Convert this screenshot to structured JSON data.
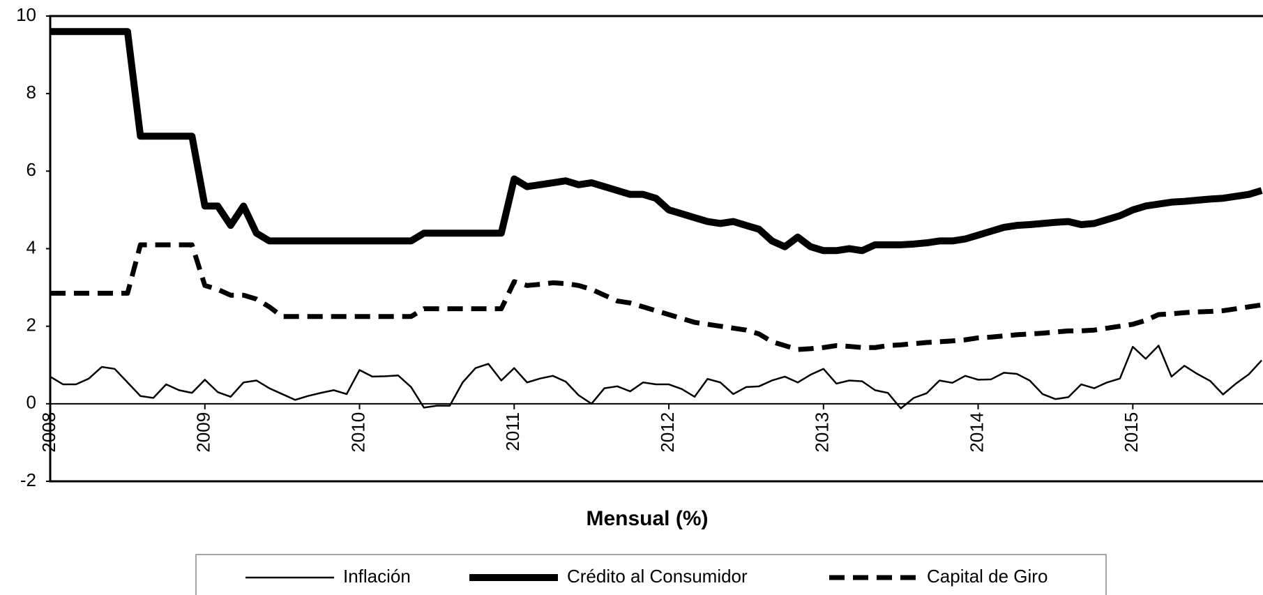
{
  "chart_data": {
    "type": "line",
    "x_label": "Mensual (%)",
    "categories": [
      "2008",
      null,
      null,
      null,
      null,
      null,
      null,
      null,
      null,
      null,
      null,
      null,
      "2009",
      null,
      null,
      null,
      null,
      null,
      null,
      null,
      null,
      null,
      null,
      null,
      "2010",
      null,
      null,
      null,
      null,
      null,
      null,
      null,
      null,
      null,
      null,
      null,
      "2011",
      null,
      null,
      null,
      null,
      null,
      null,
      null,
      null,
      null,
      null,
      null,
      "2012",
      null,
      null,
      null,
      null,
      null,
      null,
      null,
      null,
      null,
      null,
      null,
      "2013",
      null,
      null,
      null,
      null,
      null,
      null,
      null,
      null,
      null,
      null,
      null,
      "2014",
      null,
      null,
      null,
      null,
      null,
      null,
      null,
      null,
      null,
      null,
      null,
      "2015",
      null,
      null,
      null,
      null,
      null,
      null,
      null,
      null,
      null,
      null
    ],
    "ylim": [
      -2,
      10
    ],
    "yticks": [
      -2,
      0,
      2,
      4,
      6,
      8,
      10
    ],
    "grid": false,
    "legend": "bottom",
    "series": [
      {
        "name": "Inflación",
        "color": "#000000",
        "linestyle": "thin",
        "values": [
          0.7,
          0.5,
          0.5,
          0.65,
          0.95,
          0.9,
          0.55,
          0.2,
          0.15,
          0.5,
          0.35,
          0.28,
          0.62,
          0.3,
          0.18,
          0.55,
          0.6,
          0.4,
          0.25,
          0.1,
          0.2,
          0.28,
          0.35,
          0.25,
          0.87,
          0.7,
          0.71,
          0.73,
          0.43,
          -0.1,
          -0.05,
          -0.05,
          0.55,
          0.92,
          1.03,
          0.6,
          0.92,
          0.55,
          0.65,
          0.72,
          0.57,
          0.22,
          0.0,
          0.4,
          0.45,
          0.32,
          0.55,
          0.5,
          0.5,
          0.38,
          0.18,
          0.64,
          0.55,
          0.25,
          0.43,
          0.45,
          0.6,
          0.7,
          0.55,
          0.75,
          0.9,
          0.52,
          0.6,
          0.58,
          0.35,
          0.28,
          -0.12,
          0.15,
          0.27,
          0.6,
          0.54,
          0.72,
          0.62,
          0.63,
          0.8,
          0.77,
          0.6,
          0.25,
          0.12,
          0.17,
          0.5,
          0.4,
          0.55,
          0.65,
          1.47,
          1.16,
          1.5,
          0.7,
          0.98,
          0.77,
          0.59,
          0.24,
          0.52,
          0.76,
          1.12
        ]
      },
      {
        "name": "Crédito al Consumidor",
        "color": "#000000",
        "linestyle": "thick",
        "values": [
          9.6,
          9.6,
          9.6,
          9.6,
          9.6,
          9.6,
          9.6,
          6.9,
          6.9,
          6.9,
          6.9,
          6.9,
          5.1,
          5.1,
          4.6,
          5.1,
          4.4,
          4.2,
          4.2,
          4.2,
          4.2,
          4.2,
          4.2,
          4.2,
          4.2,
          4.2,
          4.2,
          4.2,
          4.2,
          4.4,
          4.4,
          4.4,
          4.4,
          4.4,
          4.4,
          4.4,
          5.8,
          5.6,
          5.65,
          5.7,
          5.75,
          5.65,
          5.7,
          5.6,
          5.5,
          5.4,
          5.4,
          5.3,
          5.0,
          4.9,
          4.8,
          4.7,
          4.65,
          4.7,
          4.6,
          4.5,
          4.2,
          4.05,
          4.3,
          4.05,
          3.95,
          3.95,
          4.0,
          3.95,
          4.1,
          4.1,
          4.1,
          4.12,
          4.15,
          4.2,
          4.2,
          4.25,
          4.35,
          4.45,
          4.55,
          4.6,
          4.62,
          4.65,
          4.68,
          4.7,
          4.62,
          4.65,
          4.75,
          4.85,
          5.0,
          5.1,
          5.15,
          5.2,
          5.22,
          5.25,
          5.28,
          5.3,
          5.35,
          5.4,
          5.5
        ]
      },
      {
        "name": "Capital de Giro",
        "color": "#000000",
        "linestyle": "dashed",
        "values": [
          2.85,
          2.85,
          2.85,
          2.85,
          2.85,
          2.85,
          2.85,
          4.1,
          4.1,
          4.1,
          4.1,
          4.1,
          3.05,
          2.95,
          2.8,
          2.8,
          2.7,
          2.5,
          2.25,
          2.25,
          2.25,
          2.25,
          2.25,
          2.25,
          2.25,
          2.25,
          2.25,
          2.25,
          2.25,
          2.45,
          2.45,
          2.45,
          2.45,
          2.45,
          2.45,
          2.45,
          3.15,
          3.05,
          3.08,
          3.12,
          3.1,
          3.05,
          2.95,
          2.8,
          2.65,
          2.6,
          2.5,
          2.4,
          2.3,
          2.2,
          2.1,
          2.05,
          2.0,
          1.95,
          1.9,
          1.8,
          1.6,
          1.5,
          1.4,
          1.42,
          1.45,
          1.5,
          1.48,
          1.45,
          1.45,
          1.5,
          1.52,
          1.55,
          1.58,
          1.6,
          1.62,
          1.65,
          1.7,
          1.72,
          1.75,
          1.78,
          1.8,
          1.82,
          1.85,
          1.88,
          1.88,
          1.9,
          1.95,
          2.0,
          2.05,
          2.15,
          2.3,
          2.32,
          2.35,
          2.37,
          2.38,
          2.4,
          2.45,
          2.5,
          2.55
        ]
      }
    ]
  }
}
